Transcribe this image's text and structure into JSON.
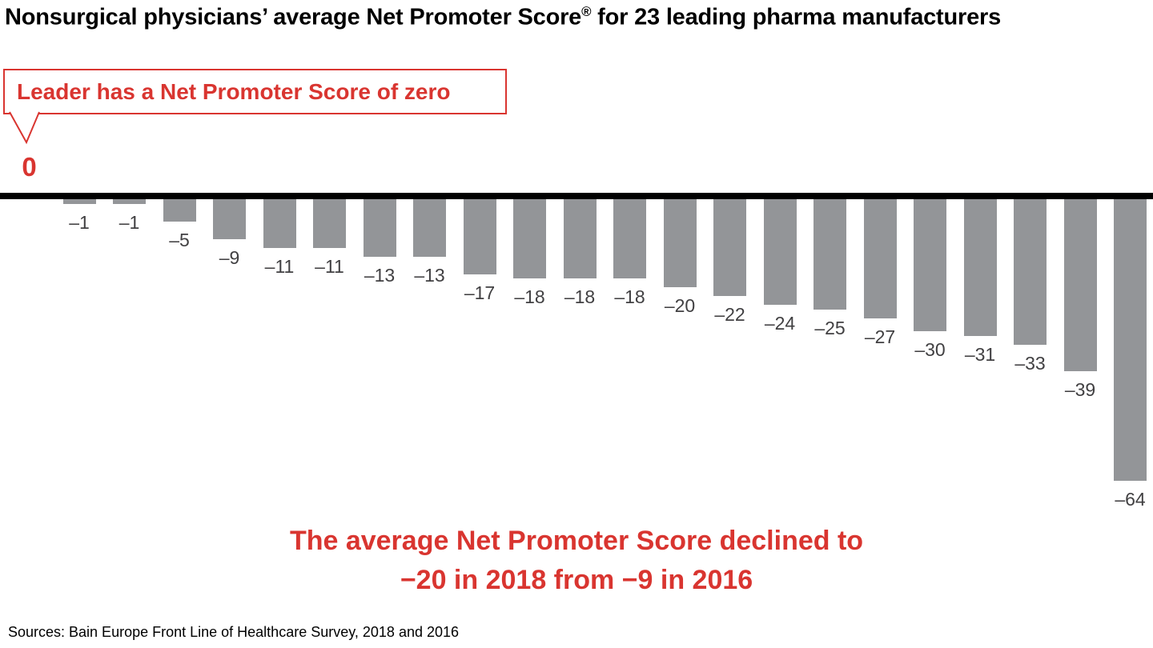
{
  "colors": {
    "accent_red": "#d93530",
    "bar_gray": "#939598",
    "label_gray": "#414042",
    "baseline_black": "#000000"
  },
  "header": {
    "title_pre": "Nonsurgical physicians’ average Net Promoter Score",
    "title_sup": "®",
    "title_post": " for 23 leading pharma manufacturers"
  },
  "callout": {
    "text": "Leader has a Net Promoter Score of zero"
  },
  "annotation": {
    "line1": "The average Net Promoter Score declined to",
    "line2": "−20 in 2018 from −9 in 2016"
  },
  "footer": {
    "sources": "Sources: Bain Europe Front Line of Healthcare Survey, 2018 and 2016"
  },
  "chart_data": {
    "type": "bar",
    "title": "Nonsurgical physicians’ average Net Promoter Score® for 23 leading pharma manufacturers",
    "ylabel": "Net Promoter Score",
    "xlabel": "",
    "values": [
      0,
      -1,
      -1,
      -5,
      -9,
      -11,
      -11,
      -13,
      -13,
      -17,
      -18,
      -18,
      -18,
      -20,
      -22,
      -24,
      -25,
      -27,
      -30,
      -31,
      -33,
      -39,
      -64
    ],
    "labels": [
      "0",
      "–1",
      "–1",
      "–5",
      "–9",
      "–11",
      "–11",
      "–13",
      "–13",
      "–17",
      "–18",
      "–18",
      "–18",
      "–20",
      "–22",
      "–24",
      "–25",
      "–27",
      "–30",
      "–31",
      "–33",
      "–39",
      "–64"
    ],
    "ylim": [
      -70,
      0
    ],
    "gridlines": false,
    "legend": false,
    "bar_color": "#939598",
    "annotations": [
      "Leader has a Net Promoter Score of zero",
      "The average Net Promoter Score declined to −20 in 2018 from −9 in 2016"
    ]
  }
}
